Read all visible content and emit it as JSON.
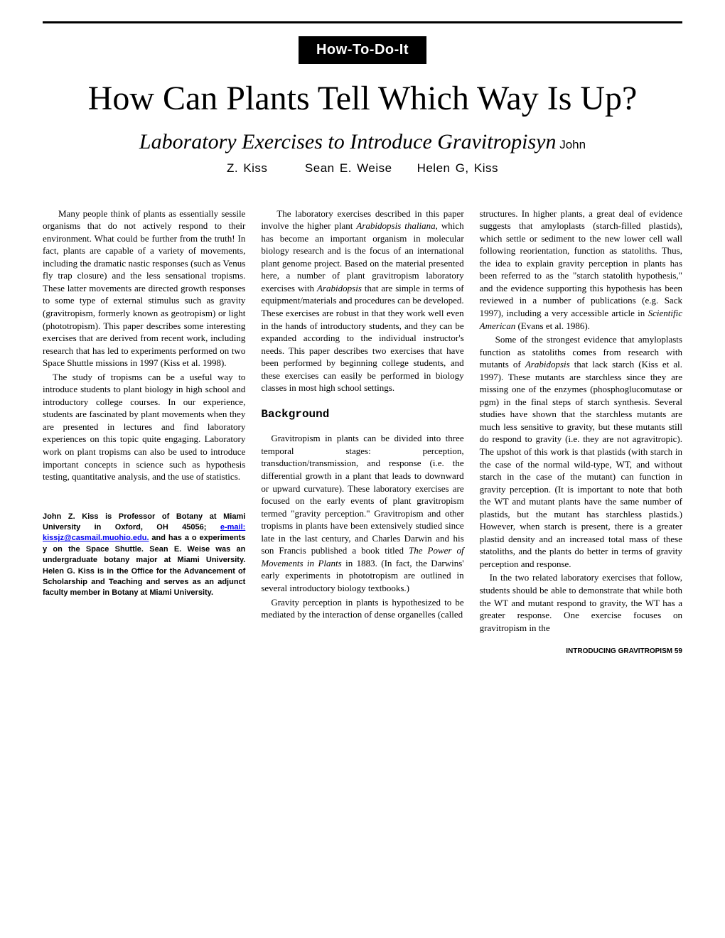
{
  "badge_label": "How-To-Do-It",
  "title": "How Can Plants Tell Which Way Is Up?",
  "subtitle": "Laboratory Exercises to Introduce Gravitropisyn",
  "sub_author_inline": " John",
  "authors_line": "Z. Kiss   Sean E. Weise  Helen G, Kiss",
  "col1_p1": "Many people think of plants as essentially sessile organisms that do not actively respond to their environment. What could be further from the truth! In fact, plants are capable of a variety of movements, including the dramatic nastic responses (such as Venus fly trap closure) and the less sensational tropisms. These latter movements are directed growth responses to some type of external stimulus such as gravity (gravitropism, formerly known as geotropism) or light (phototropism). This paper describes some interesting exercises that are derived from recent work, including research that has led to experiments performed on two Space Shuttle missions in 1997 (Kiss et al. 1998).",
  "col1_p2": "The study of tropisms can be a useful way to introduce students to plant biology in high school and introductory college courses. In our experience, students are fascinated by plant movements when they are presented in lectures and find laboratory experiences on this topic quite engaging. Laboratory work on plant tropisms can also be used to introduce important concepts in science such as hypothesis testing, quantitative analysis, and the use of statistics.",
  "bio_pre": "John Z. Kiss is Professor of Botany at Miami University in Oxford, OH 45056; ",
  "bio_link_label": "e-mail: kissjz@casmail.muohio.edu.",
  "bio_post": " and has a o experiments y on the Space Shuttle. Sean E. Weise was an undergraduate botany major at Miami University. Helen G. Kiss is in the Office for the Advancement of Scholarship and Teaching and serves as an adjunct faculty member in Botany at Miami University.",
  "col2_p1a": "The laboratory exercises described in this paper involve the higher plant ",
  "col2_p1_ital1": "Arabidopsis thaliana,",
  "col2_p1b": " which has become an important organism in molecular biology research and is the focus of an international plant genome project. Based on the material presented here, a number of plant gravitropism laboratory exercises with ",
  "col2_p1_ital2": "Arabidopsis",
  "col2_p1c": " that are simple in terms of equipment/materials and procedures can be developed. These exercises are robust in that they work well even in the hands of introductory students, and they can be expanded according to the individual instructor's needs. This paper describes two exercises that have been performed by beginning college students, and these exercises can easily be performed in biology classes in most high school settings.",
  "section_background": "Background",
  "col2_p2a": "Gravitropism in plants can be divided into three temporal stages: perception, transduction/transmission, and response (i.e. the differential growth in a plant that leads to downward or upward curvature). These laboratory exercises are focused on the early events of plant gravitropism termed \"gravity perception.\" Gravitropism and other tropisms in plants have been extensively studied since late in the last century, and Charles Darwin and his son Francis published a book titled ",
  "col2_p2_ital1": "The Power of Movements in Plants",
  "col2_p2b": " in 1883. (In fact, the Darwins' early experiments in phototropism are outlined in several introductory biology textbooks.)",
  "col2_p3": "Gravity perception in plants is hypothesized to be mediated by the interaction of dense organelles (called",
  "col3_p1a": "structures. In higher plants, a great deal of evidence suggests that amyloplasts (starch-filled plastids), which settle or sediment to the new lower cell wall following reorientation, function as statoliths. Thus, the idea to explain gravity perception in plants has been referred to as the \"starch statolith hypothesis,\" and the evidence supporting this hypothesis has been reviewed in a number of publications (e.g. Sack 1997), including a very accessible article in ",
  "col3_p1_ital1": "Scientific American",
  "col3_p1b": " (Evans et al. 1986).",
  "col3_p2a": "Some of the strongest evidence that amyloplasts function as statoliths comes from research with mutants of ",
  "col3_p2_ital1": "Arabidopsis",
  "col3_p2b": " that lack starch (Kiss et al. 1997). These mutants are starchless since they are missing one of the enzymes (phosphoglucomutase or pgm) in the final steps of starch synthesis. Several studies have shown that the starchless mutants are much less sensitive to gravity, but these mutants still do respond to gravity (i.e. they are not agravitropic). The upshot of this work is that plastids (with starch in the case of the normal wild-type, WT, and without starch in the case of the mutant) can function in gravity perception. (It is important to note that both the WT and mutant plants have the same number of plastids, but the mutant has starchless plastids.) However, when starch is present, there is a greater plastid density and an increased total mass of these statoliths, and the plants do better in terms of gravity perception and response.",
  "col3_p3": "In the two related laboratory exercises that follow, students should be able to demonstrate that while both the WT and mutant respond to gravity, the WT has a greater response. One exercise focuses on gravitropism in the",
  "footer": "INTRODUCING GRAVITROPISM 59",
  "colors": {
    "bg": "#ffffff",
    "text": "#000000",
    "badge_bg": "#000000",
    "badge_fg": "#ffffff",
    "link": "#0000ee"
  },
  "fonts": {
    "body": "Georgia",
    "sans": "Arial",
    "mono": "Courier New",
    "title_size": 48,
    "subtitle_size": 30,
    "body_size": 13
  }
}
